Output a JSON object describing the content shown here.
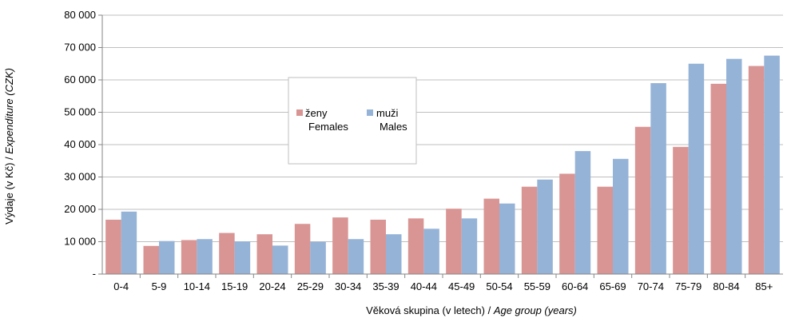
{
  "chart_data": {
    "type": "bar",
    "title": "",
    "categories": [
      "0-4",
      "5-9",
      "10-14",
      "15-19",
      "20-24",
      "25-29",
      "30-34",
      "35-39",
      "40-44",
      "45-49",
      "50-54",
      "55-59",
      "60-64",
      "65-69",
      "70-74",
      "75-79",
      "80-84",
      "85+"
    ],
    "series": [
      {
        "name": "ženy Females",
        "name_cz": "ženy",
        "name_en": "Females",
        "color": "#d99594",
        "values": [
          16800,
          8700,
          10500,
          12700,
          12300,
          15500,
          17500,
          16800,
          17200,
          20200,
          23300,
          27000,
          31000,
          27000,
          45500,
          39300,
          58800,
          64300
        ]
      },
      {
        "name": "muži Males",
        "name_cz": "muži",
        "name_en": "Males",
        "color": "#95b3d7",
        "values": [
          19300,
          10200,
          10800,
          10100,
          8800,
          10000,
          10800,
          12300,
          14000,
          17200,
          21800,
          29200,
          38000,
          35600,
          59000,
          65000,
          66500,
          67500
        ]
      }
    ],
    "y_ticks": [
      "-",
      "10 000",
      "20 000",
      "30 000",
      "40 000",
      "50 000",
      "60 000",
      "70 000",
      "80 000"
    ],
    "ylim": [
      0,
      80000
    ],
    "xlabel_cz": "Věková skupina (v letech)",
    "xlabel_sep": " / ",
    "xlabel_en": "Age group (years)",
    "ylabel_cz": "Výdaje (v Kč)",
    "ylabel_sep": " / ",
    "ylabel_en": "Expenditure (CZK)",
    "grid": true,
    "legend_position": "inside-upper-left"
  }
}
